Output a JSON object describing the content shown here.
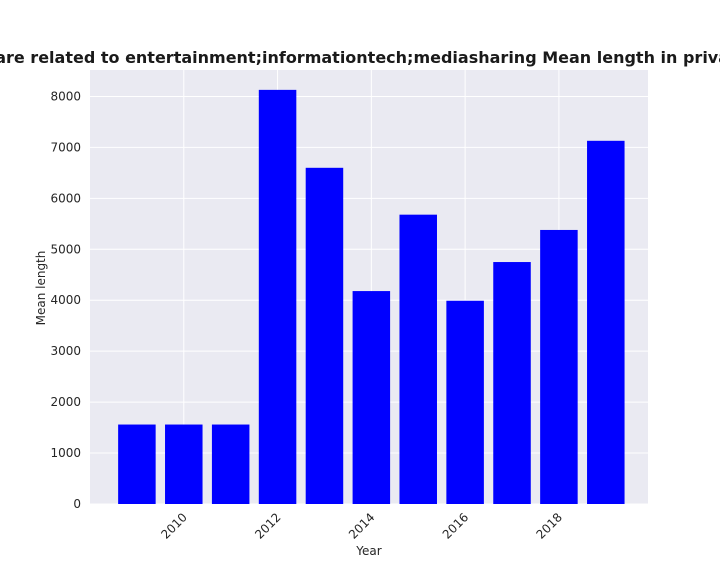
{
  "chart_data": {
    "type": "bar",
    "title": "egories are related to entertainment;informationtech;mediasharing Mean length in privacy polic",
    "xlabel": "Year",
    "ylabel": "Mean length",
    "x": [
      2009,
      2010,
      2011,
      2012,
      2013,
      2014,
      2015,
      2016,
      2017,
      2018,
      2019
    ],
    "values": [
      1560,
      1560,
      1560,
      8130,
      6600,
      4180,
      5680,
      3990,
      4750,
      5380,
      7130
    ],
    "xticks": [
      2010,
      2012,
      2014,
      2016,
      2018
    ],
    "xtick_labels": [
      "2010",
      "2012",
      "2014",
      "2016",
      "2018"
    ],
    "xlim": [
      2008.0,
      2019.9
    ],
    "ylim": [
      0,
      8520
    ],
    "yticks": [
      0,
      1000,
      2000,
      3000,
      4000,
      5000,
      6000,
      7000,
      8000
    ],
    "ytick_labels": [
      "0",
      "1000",
      "2000",
      "3000",
      "4000",
      "5000",
      "6000",
      "7000",
      "8000"
    ],
    "grid": true,
    "colors": {
      "bar": "#0000ff",
      "plot_background": "#eaeaf2",
      "grid": "#ffffff"
    }
  }
}
